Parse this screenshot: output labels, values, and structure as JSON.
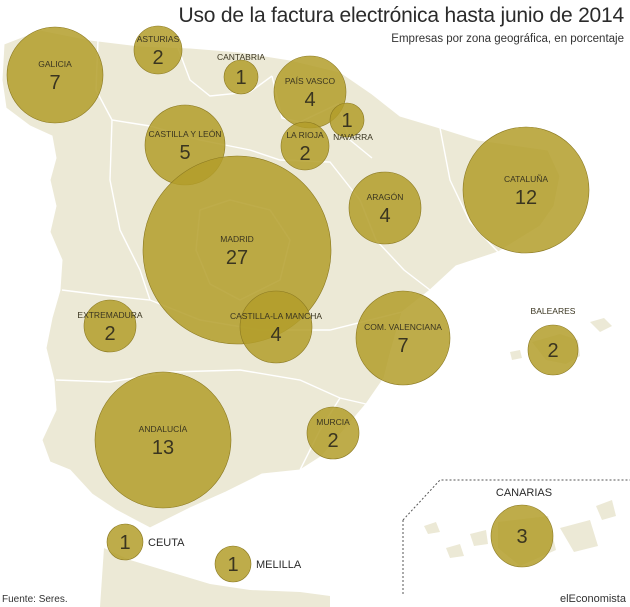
{
  "header": {
    "title": "Uso de la factura electrónica hasta junio de 2014",
    "subtitle": "Empresas por zona geográfica, en porcentaje"
  },
  "footer": {
    "source": "Fuente: Seres.",
    "brand": "elEconomista"
  },
  "colors": {
    "land": "#ece9d6",
    "border": "#ffffff",
    "bubble": "#b39d2a",
    "bubble_stroke": "#8a7820",
    "text": "#3a3520"
  },
  "inset": {
    "label": "CANARIAS"
  },
  "regions": [
    {
      "id": "galicia",
      "name": "GALICIA",
      "value": 7
    },
    {
      "id": "asturias",
      "name": "ASTURIAS",
      "value": 2
    },
    {
      "id": "cantabria",
      "name": "CANTABRIA",
      "value": 1
    },
    {
      "id": "pais-vasco",
      "name": "PAÍS VASCO",
      "value": 4
    },
    {
      "id": "navarra",
      "name": "NAVARRA",
      "value": 1
    },
    {
      "id": "la-rioja",
      "name": "LA RIOJA",
      "value": 2
    },
    {
      "id": "castilla-y-leon",
      "name": "CASTILLA Y LEÓN",
      "value": 5
    },
    {
      "id": "cataluna",
      "name": "CATALUÑA",
      "value": 12
    },
    {
      "id": "aragon",
      "name": "ARAGÓN",
      "value": 4
    },
    {
      "id": "madrid",
      "name": "MADRID",
      "value": 27
    },
    {
      "id": "extremadura",
      "name": "EXTREMADURA",
      "value": 2
    },
    {
      "id": "castilla-la-mancha",
      "name": "CASTILLA-LA MANCHA",
      "value": 4
    },
    {
      "id": "com-valenciana",
      "name": "COM. VALENCIANA",
      "value": 7
    },
    {
      "id": "baleares",
      "name": "BALEARES",
      "value": 2
    },
    {
      "id": "andalucia",
      "name": "ANDALUCÍA",
      "value": 13
    },
    {
      "id": "murcia",
      "name": "MURCIA",
      "value": 2
    },
    {
      "id": "ceuta",
      "name": "CEUTA",
      "value": 1
    },
    {
      "id": "melilla",
      "name": "MELILLA",
      "value": 1
    },
    {
      "id": "canarias",
      "name": "",
      "value": 3
    }
  ]
}
